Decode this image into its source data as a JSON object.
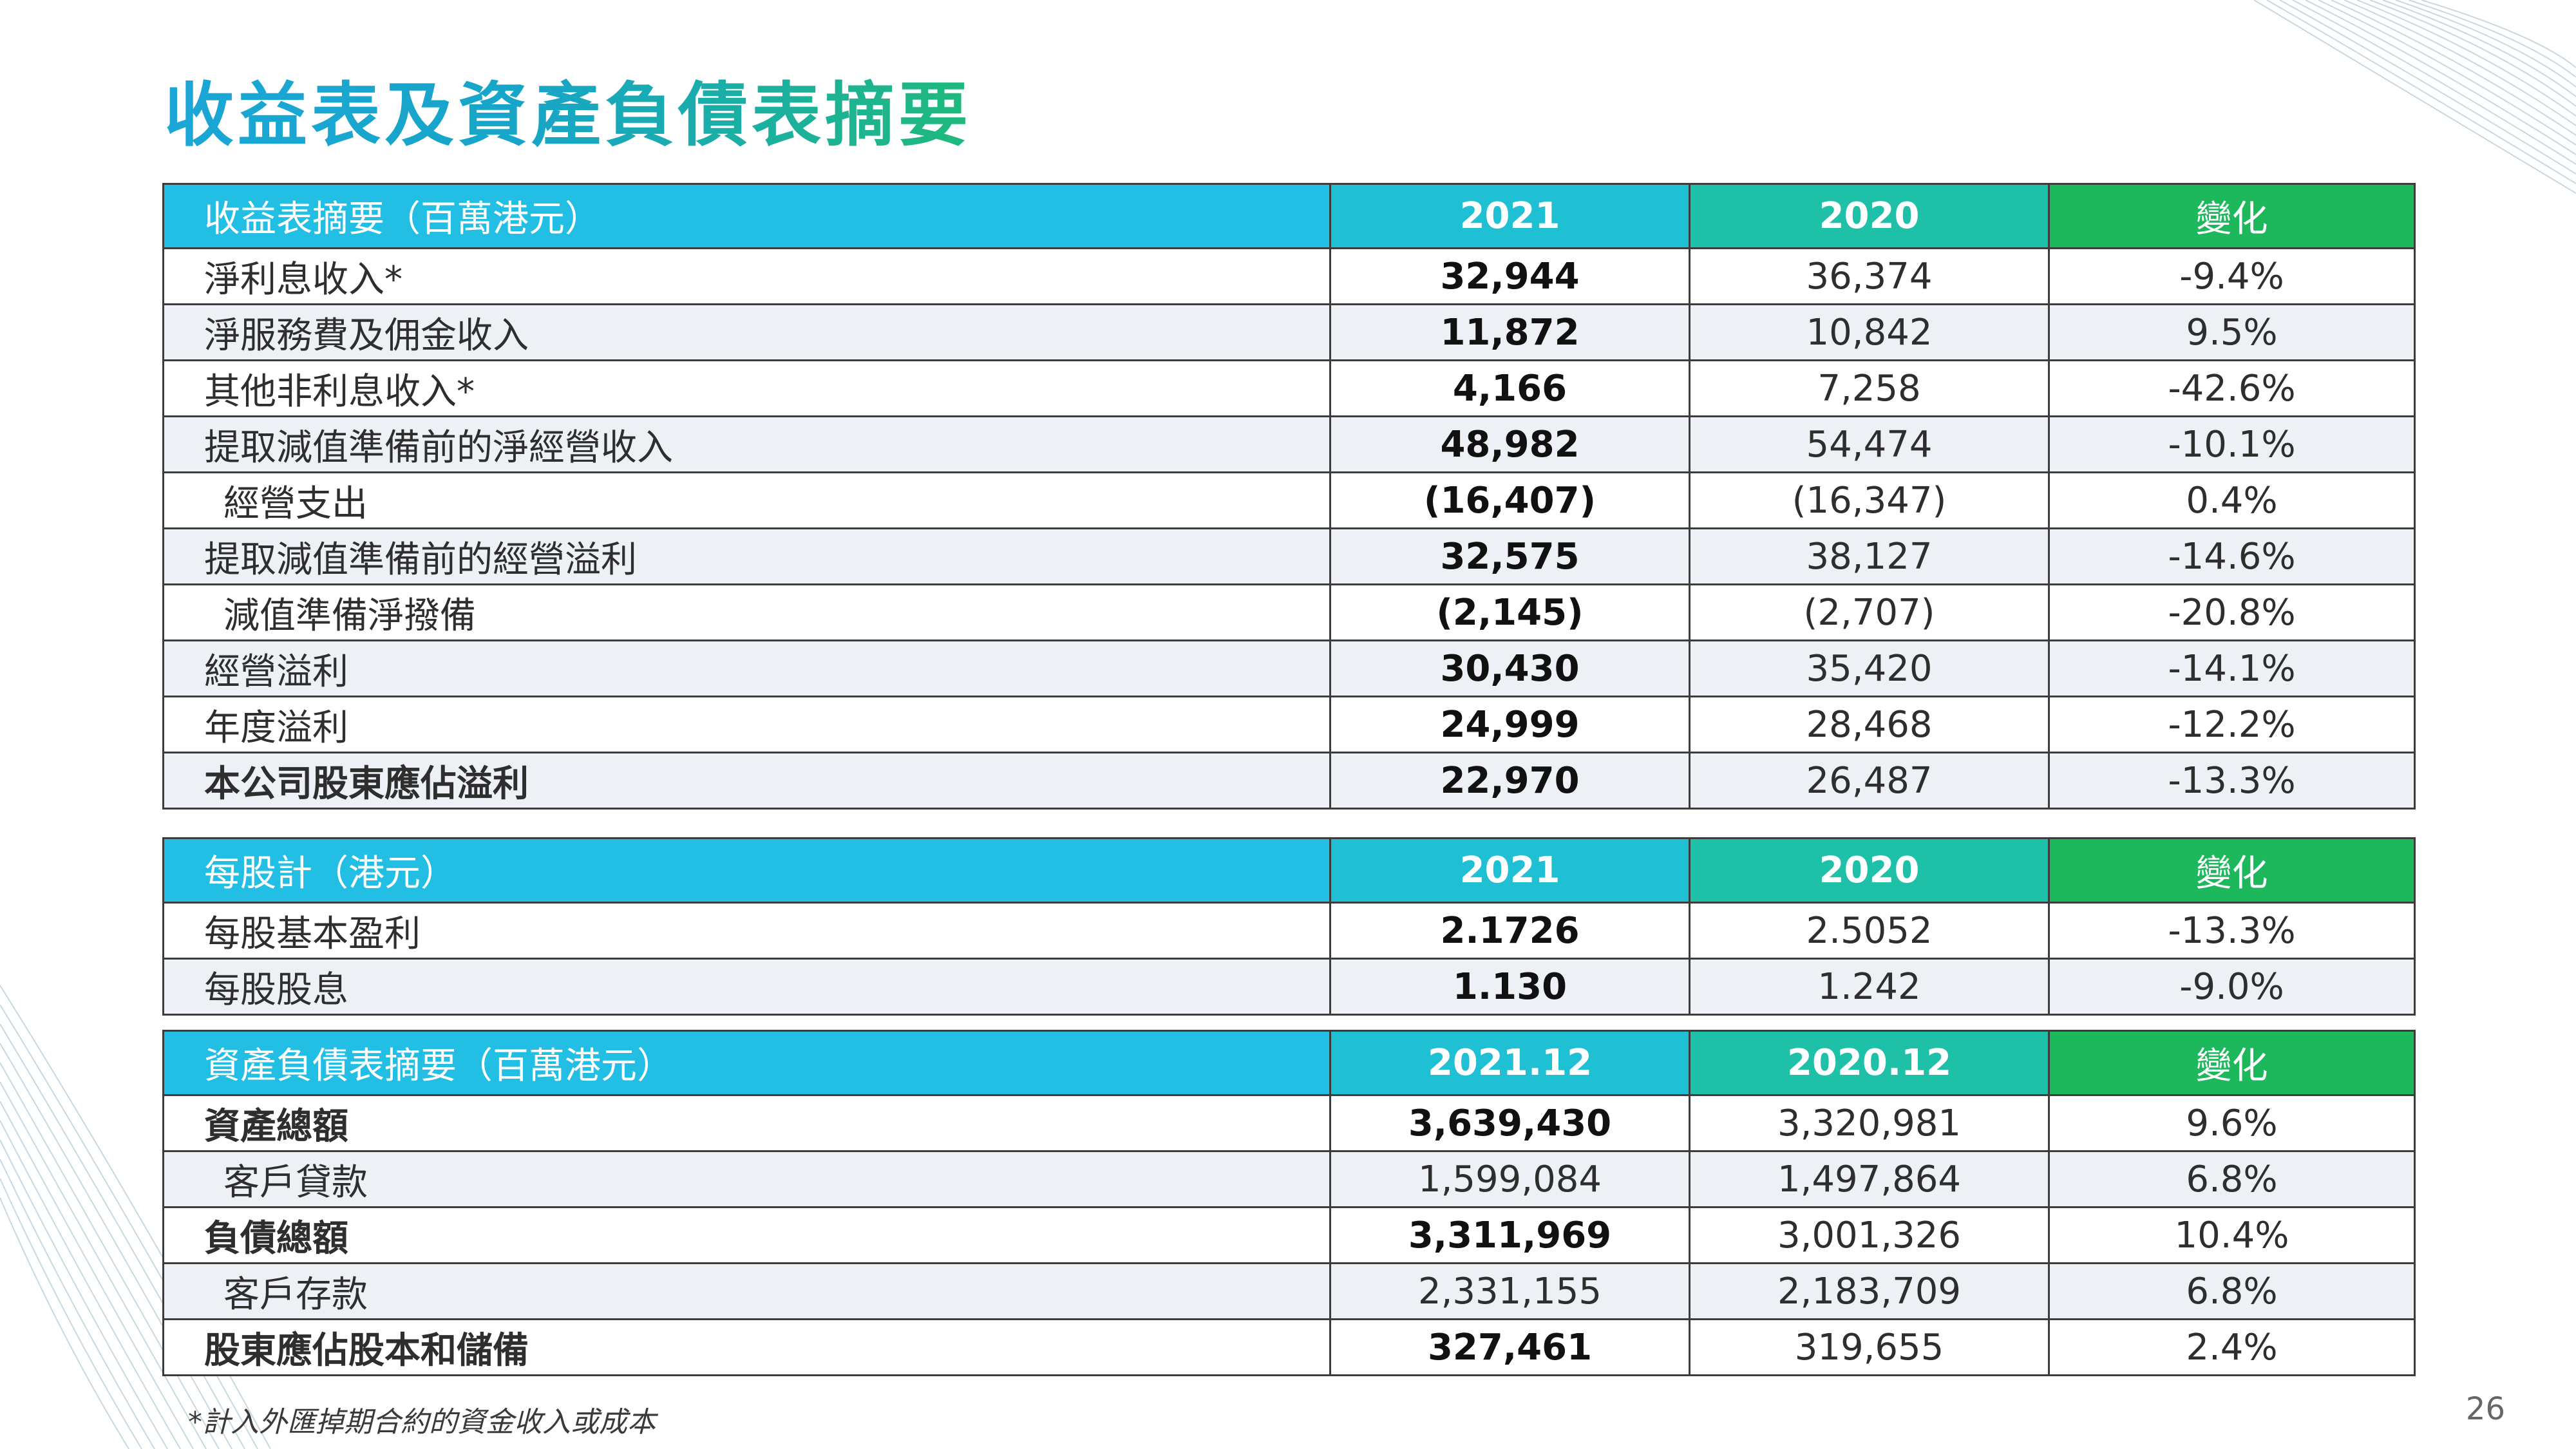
{
  "title": "收益表及資產負債表摘要",
  "income": {
    "header": [
      "收益表摘要（百萬港元）",
      "2021",
      "2020",
      "變化"
    ],
    "rows": [
      {
        "label": "淨利息收入*",
        "v2021": "32,944",
        "v2020": "36,374",
        "change": "-9.4%"
      },
      {
        "label": "淨服務費及佣金收入",
        "v2021": "11,872",
        "v2020": "10,842",
        "change": "9.5%"
      },
      {
        "label": "其他非利息收入*",
        "v2021": "4,166",
        "v2020": "7,258",
        "change": "-42.6%"
      },
      {
        "label": "提取減值準備前的淨經營收入",
        "v2021": "48,982",
        "v2020": "54,474",
        "change": "-10.1%"
      },
      {
        "label": "經營支出",
        "v2021": "(16,407)",
        "v2020": "(16,347)",
        "change": "0.4%"
      },
      {
        "label": "提取減值準備前的經營溢利",
        "v2021": "32,575",
        "v2020": "38,127",
        "change": "-14.6%"
      },
      {
        "label": "減值準備淨撥備",
        "v2021": "(2,145)",
        "v2020": "(2,707)",
        "change": "-20.8%"
      },
      {
        "label": "經營溢利",
        "v2021": "30,430",
        "v2020": "35,420",
        "change": "-14.1%"
      },
      {
        "label": "年度溢利",
        "v2021": "24,999",
        "v2020": "28,468",
        "change": "-12.2%"
      },
      {
        "label": "本公司股東應佔溢利",
        "v2021": "22,970",
        "v2020": "26,487",
        "change": "-13.3%"
      }
    ]
  },
  "per_share": {
    "header": [
      "每股計（港元）",
      "2021",
      "2020",
      "變化"
    ],
    "rows": [
      {
        "label": "每股基本盈利",
        "v2021": "2.1726",
        "v2020": "2.5052",
        "change": "-13.3%"
      },
      {
        "label": "每股股息",
        "v2021": "1.130",
        "v2020": "1.242",
        "change": "-9.0%"
      }
    ]
  },
  "balance": {
    "header": [
      "資產負債表摘要（百萬港元）",
      "2021.12",
      "2020.12",
      "變化"
    ],
    "rows": [
      {
        "label": "資產總額",
        "v2021": "3,639,430",
        "v2020": "3,320,981",
        "change": "9.6%"
      },
      {
        "label": "客戶貸款",
        "v2021": "1,599,084",
        "v2020": "1,497,864",
        "change": "6.8%"
      },
      {
        "label": "負債總額",
        "v2021": "3,311,969",
        "v2020": "3,001,326",
        "change": "10.4%"
      },
      {
        "label": "客戶存款",
        "v2021": "2,331,155",
        "v2020": "2,183,709",
        "change": "6.8%"
      },
      {
        "label": "股東應佔股本和儲備",
        "v2021": "327,461",
        "v2020": "319,655",
        "change": "2.4%"
      }
    ]
  },
  "footnote": "*計入外匯掉期合約的資金收入或成本",
  "page_number": "26",
  "colors": {
    "accent_blue": "#22bee4",
    "accent_green": "#1db85c",
    "row_alt": "#edf0f5"
  }
}
